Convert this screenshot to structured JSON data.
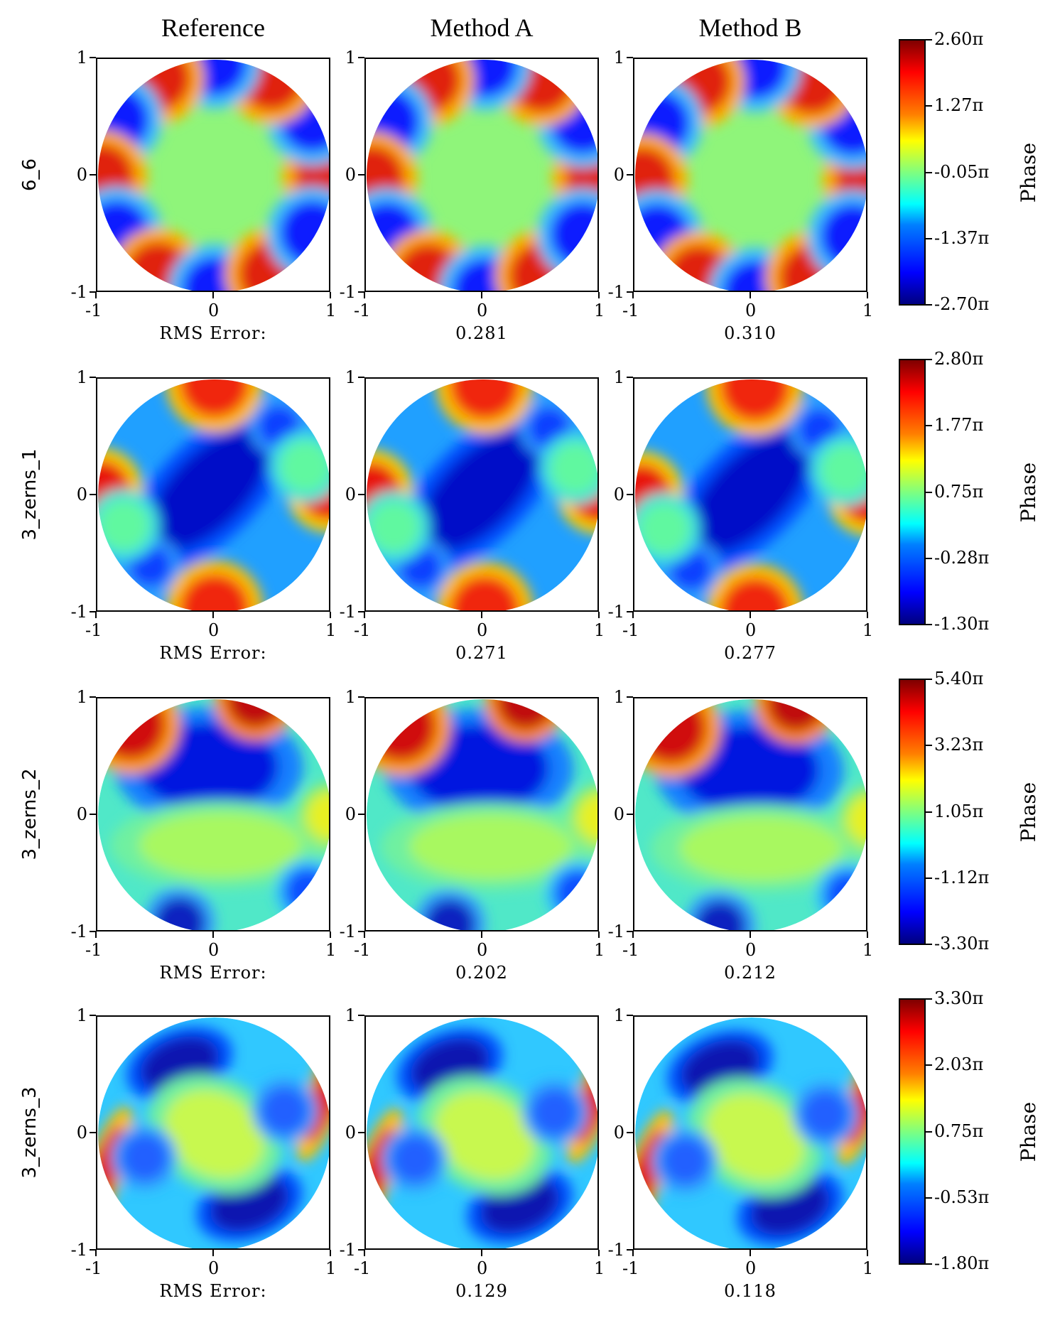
{
  "column_titles": [
    "Reference",
    "Method A",
    "Method B"
  ],
  "chart_data": {
    "type": "heatmap",
    "columns": [
      "Reference",
      "Method A",
      "Method B"
    ],
    "colormap": "jet",
    "axis": {
      "xticks": [
        "-1",
        "0",
        "1"
      ],
      "yticks": [
        "1",
        "0",
        "-1"
      ],
      "xlim": [
        -1,
        1
      ],
      "ylim": [
        -1,
        1
      ]
    },
    "rms_prefix": "RMS Error:",
    "rows": [
      {
        "label": "6_6",
        "rms": [
          "0.281",
          "0.310"
        ],
        "colorbar": {
          "label": "Phase",
          "ticks": [
            "2.60π",
            "1.27π",
            "-0.05π",
            "-1.37π",
            "-2.70π"
          ],
          "range": [
            -2.7,
            2.6
          ]
        }
      },
      {
        "label": "3_zerns_1",
        "rms": [
          "0.271",
          "0.277"
        ],
        "colorbar": {
          "label": "Phase",
          "ticks": [
            "2.80π",
            "1.77π",
            "0.75π",
            "-0.28π",
            "-1.30π"
          ],
          "range": [
            -1.3,
            2.8
          ]
        }
      },
      {
        "label": "3_zerns_2",
        "rms": [
          "0.202",
          "0.212"
        ],
        "colorbar": {
          "label": "Phase",
          "ticks": [
            "5.40π",
            "3.23π",
            "1.05π",
            "-1.12π",
            "-3.30π"
          ],
          "range": [
            -3.3,
            5.4
          ]
        }
      },
      {
        "label": "3_zerns_3",
        "rms": [
          "0.129",
          "0.118"
        ],
        "colorbar": {
          "label": "Phase",
          "ticks": [
            "3.30π",
            "2.03π",
            "0.75π",
            "-0.53π",
            "-1.80π"
          ],
          "range": [
            -1.8,
            3.3
          ]
        }
      }
    ]
  }
}
